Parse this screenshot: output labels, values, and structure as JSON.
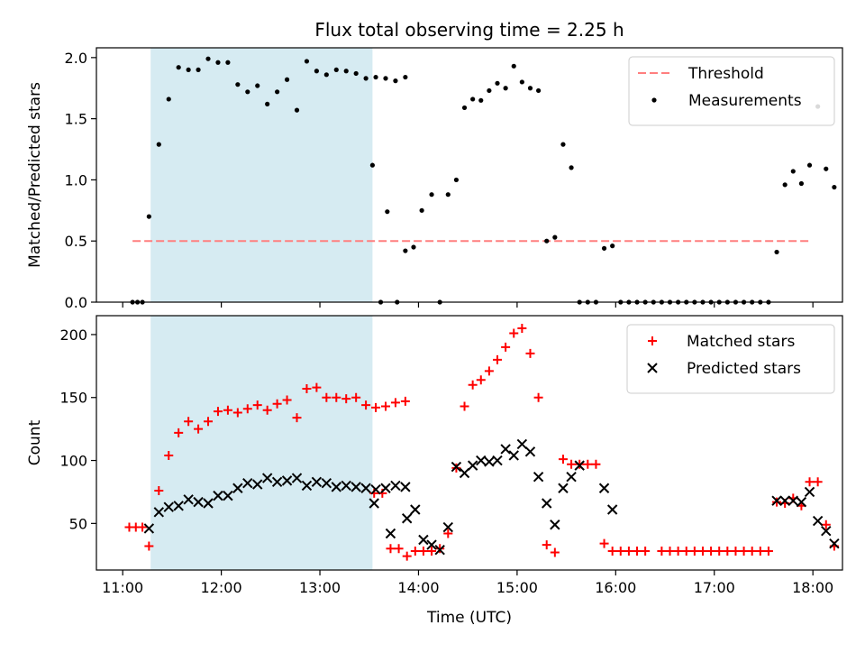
{
  "chart_data": [
    {
      "type": "scatter",
      "title": "Flux total observing time = 2.25 h",
      "ylabel": "Matched/Predicted stars",
      "xlabel": "",
      "ylim": [
        0,
        2.08
      ],
      "yticks": [
        "0.0",
        "0.5",
        "1.0",
        "1.5",
        "2.0"
      ],
      "xlim": [
        "10:44",
        "18:18"
      ],
      "grid": false,
      "legend_position": "top-right",
      "highlight_span": {
        "start": "11:17",
        "end": "13:32",
        "color": "#add8e6"
      },
      "threshold": {
        "name": "Threshold",
        "value": 0.5,
        "x_start": "11:06",
        "x_end": "17:58",
        "color": "#ff7f7f"
      },
      "series": [
        {
          "name": "Measurements",
          "color": "#000000",
          "points": [
            [
              "11:06",
              0
            ],
            [
              "11:09",
              0
            ],
            [
              "11:12",
              0
            ],
            [
              "11:16",
              0.7
            ],
            [
              "11:22",
              1.29
            ],
            [
              "11:28",
              1.66
            ],
            [
              "11:34",
              1.92
            ],
            [
              "11:40",
              1.9
            ],
            [
              "11:46",
              1.9
            ],
            [
              "11:52",
              1.99
            ],
            [
              "11:58",
              1.96
            ],
            [
              "12:04",
              1.96
            ],
            [
              "12:10",
              1.78
            ],
            [
              "12:16",
              1.72
            ],
            [
              "12:22",
              1.77
            ],
            [
              "12:28",
              1.62
            ],
            [
              "12:34",
              1.72
            ],
            [
              "12:40",
              1.82
            ],
            [
              "12:46",
              1.57
            ],
            [
              "12:52",
              1.97
            ],
            [
              "12:58",
              1.89
            ],
            [
              "13:04",
              1.86
            ],
            [
              "13:10",
              1.9
            ],
            [
              "13:16",
              1.89
            ],
            [
              "13:22",
              1.87
            ],
            [
              "13:28",
              1.83
            ],
            [
              "13:34",
              1.84
            ],
            [
              "13:40",
              1.83
            ],
            [
              "13:46",
              1.81
            ],
            [
              "13:52",
              1.84
            ],
            [
              "13:32",
              1.12
            ],
            [
              "13:37",
              0
            ],
            [
              "13:41",
              0.74
            ],
            [
              "13:47",
              0
            ],
            [
              "13:52",
              0.42
            ],
            [
              "13:57",
              0.45
            ],
            [
              "14:02",
              0.75
            ],
            [
              "14:08",
              0.88
            ],
            [
              "14:13",
              0
            ],
            [
              "14:18",
              0.88
            ],
            [
              "14:23",
              1.0
            ],
            [
              "14:28",
              1.59
            ],
            [
              "14:33",
              1.66
            ],
            [
              "14:38",
              1.65
            ],
            [
              "14:43",
              1.73
            ],
            [
              "14:48",
              1.79
            ],
            [
              "14:53",
              1.75
            ],
            [
              "14:58",
              1.93
            ],
            [
              "15:03",
              1.8
            ],
            [
              "15:08",
              1.75
            ],
            [
              "15:13",
              1.73
            ],
            [
              "15:18",
              0.5
            ],
            [
              "15:23",
              0.53
            ],
            [
              "15:28",
              1.29
            ],
            [
              "15:33",
              1.1
            ],
            [
              "15:38",
              0
            ],
            [
              "15:43",
              0
            ],
            [
              "15:48",
              0
            ],
            [
              "15:53",
              0.44
            ],
            [
              "15:58",
              0.46
            ],
            [
              "16:03",
              0
            ],
            [
              "16:08",
              0
            ],
            [
              "16:13",
              0
            ],
            [
              "16:18",
              0
            ],
            [
              "16:23",
              0
            ],
            [
              "16:28",
              0
            ],
            [
              "16:33",
              0
            ],
            [
              "16:38",
              0
            ],
            [
              "16:43",
              0
            ],
            [
              "16:48",
              0
            ],
            [
              "16:53",
              0
            ],
            [
              "16:58",
              0
            ],
            [
              "17:03",
              0
            ],
            [
              "17:08",
              0
            ],
            [
              "17:13",
              0
            ],
            [
              "17:18",
              0
            ],
            [
              "17:23",
              0
            ],
            [
              "17:28",
              0
            ],
            [
              "17:33",
              0
            ],
            [
              "17:38",
              0.41
            ],
            [
              "17:43",
              0.96
            ],
            [
              "17:48",
              1.07
            ],
            [
              "17:53",
              0.97
            ],
            [
              "17:58",
              1.12
            ],
            [
              "18:03",
              1.6
            ],
            [
              "18:08",
              1.09
            ],
            [
              "18:13",
              0.94
            ]
          ]
        }
      ]
    },
    {
      "type": "scatter",
      "title": "",
      "ylabel": "Count",
      "xlabel": "Time (UTC)",
      "ylim": [
        13,
        215
      ],
      "yticks": [
        "50",
        "100",
        "150",
        "200"
      ],
      "xlim": [
        "10:44",
        "18:18"
      ],
      "xticks": [
        "11:00",
        "12:00",
        "13:00",
        "14:00",
        "15:00",
        "16:00",
        "17:00",
        "18:00"
      ],
      "grid": false,
      "legend_position": "top-right",
      "highlight_span": {
        "start": "11:17",
        "end": "13:32",
        "color": "#add8e6"
      },
      "series": [
        {
          "name": "Matched stars",
          "marker": "plus",
          "color": "#ff0000",
          "points": [
            [
              "11:04",
              47
            ],
            [
              "11:08",
              47
            ],
            [
              "11:12",
              47
            ],
            [
              "11:16",
              32
            ],
            [
              "11:22",
              76
            ],
            [
              "11:28",
              104
            ],
            [
              "11:34",
              122
            ],
            [
              "11:40",
              131
            ],
            [
              "11:46",
              125
            ],
            [
              "11:52",
              131
            ],
            [
              "11:58",
              139
            ],
            [
              "12:04",
              140
            ],
            [
              "12:10",
              138
            ],
            [
              "12:16",
              141
            ],
            [
              "12:22",
              144
            ],
            [
              "12:28",
              140
            ],
            [
              "12:34",
              145
            ],
            [
              "12:40",
              148
            ],
            [
              "12:46",
              134
            ],
            [
              "12:52",
              157
            ],
            [
              "12:58",
              158
            ],
            [
              "13:04",
              150
            ],
            [
              "13:10",
              150
            ],
            [
              "13:16",
              149
            ],
            [
              "13:22",
              150
            ],
            [
              "13:28",
              144
            ],
            [
              "13:34",
              142
            ],
            [
              "13:40",
              143
            ],
            [
              "13:46",
              146
            ],
            [
              "13:52",
              147
            ],
            [
              "13:33",
              74
            ],
            [
              "13:38",
              74
            ],
            [
              "13:43",
              30
            ],
            [
              "13:48",
              30
            ],
            [
              "13:53",
              24
            ],
            [
              "13:58",
              28
            ],
            [
              "14:03",
              28
            ],
            [
              "14:08",
              28
            ],
            [
              "14:13",
              30
            ],
            [
              "14:18",
              42
            ],
            [
              "14:23",
              94
            ],
            [
              "14:28",
              143
            ],
            [
              "14:33",
              160
            ],
            [
              "14:38",
              164
            ],
            [
              "14:43",
              171
            ],
            [
              "14:48",
              180
            ],
            [
              "14:53",
              190
            ],
            [
              "14:58",
              201
            ],
            [
              "15:03",
              205
            ],
            [
              "15:08",
              185
            ],
            [
              "15:13",
              150
            ],
            [
              "15:18",
              33
            ],
            [
              "15:23",
              27
            ],
            [
              "15:28",
              101
            ],
            [
              "15:33",
              97
            ],
            [
              "15:38",
              97
            ],
            [
              "15:43",
              97
            ],
            [
              "15:48",
              97
            ],
            [
              "15:53",
              34
            ],
            [
              "15:58",
              28
            ],
            [
              "16:03",
              28
            ],
            [
              "16:08",
              28
            ],
            [
              "16:13",
              28
            ],
            [
              "16:18",
              28
            ],
            [
              "16:28",
              28
            ],
            [
              "16:33",
              28
            ],
            [
              "16:38",
              28
            ],
            [
              "16:43",
              28
            ],
            [
              "16:48",
              28
            ],
            [
              "16:53",
              28
            ],
            [
              "16:58",
              28
            ],
            [
              "17:03",
              28
            ],
            [
              "17:08",
              28
            ],
            [
              "17:13",
              28
            ],
            [
              "17:18",
              28
            ],
            [
              "17:23",
              28
            ],
            [
              "17:28",
              28
            ],
            [
              "17:33",
              28
            ],
            [
              "17:38",
              67
            ],
            [
              "17:43",
              66
            ],
            [
              "17:48",
              70
            ],
            [
              "17:53",
              64
            ],
            [
              "17:58",
              83
            ],
            [
              "18:03",
              83
            ],
            [
              "18:08",
              49
            ],
            [
              "18:13",
              32
            ]
          ]
        },
        {
          "name": "Predicted stars",
          "marker": "x",
          "color": "#000000",
          "points": [
            [
              "11:16",
              46
            ],
            [
              "11:22",
              59
            ],
            [
              "11:28",
              63
            ],
            [
              "11:34",
              64
            ],
            [
              "11:40",
              69
            ],
            [
              "11:46",
              67
            ],
            [
              "11:52",
              66
            ],
            [
              "11:58",
              72
            ],
            [
              "12:04",
              72
            ],
            [
              "12:10",
              78
            ],
            [
              "12:16",
              82
            ],
            [
              "12:22",
              81
            ],
            [
              "12:28",
              86
            ],
            [
              "12:34",
              83
            ],
            [
              "12:40",
              84
            ],
            [
              "12:46",
              86
            ],
            [
              "12:52",
              80
            ],
            [
              "12:58",
              83
            ],
            [
              "13:04",
              82
            ],
            [
              "13:10",
              79
            ],
            [
              "13:16",
              80
            ],
            [
              "13:22",
              79
            ],
            [
              "13:28",
              78
            ],
            [
              "13:34",
              77
            ],
            [
              "13:40",
              78
            ],
            [
              "13:46",
              80
            ],
            [
              "13:52",
              79
            ],
            [
              "13:33",
              66
            ],
            [
              "13:43",
              42
            ],
            [
              "13:53",
              54
            ],
            [
              "13:58",
              61
            ],
            [
              "14:03",
              37
            ],
            [
              "14:08",
              33
            ],
            [
              "14:13",
              29
            ],
            [
              "14:18",
              47
            ],
            [
              "14:23",
              95
            ],
            [
              "14:28",
              90
            ],
            [
              "14:33",
              96
            ],
            [
              "14:38",
              100
            ],
            [
              "14:43",
              99
            ],
            [
              "14:48",
              100
            ],
            [
              "14:53",
              109
            ],
            [
              "14:58",
              104
            ],
            [
              "15:03",
              113
            ],
            [
              "15:08",
              107
            ],
            [
              "15:13",
              87
            ],
            [
              "15:18",
              66
            ],
            [
              "15:23",
              49
            ],
            [
              "15:28",
              78
            ],
            [
              "15:33",
              87
            ],
            [
              "15:38",
              96
            ],
            [
              "15:53",
              78
            ],
            [
              "15:58",
              61
            ],
            [
              "17:38",
              68
            ],
            [
              "17:43",
              68
            ],
            [
              "17:48",
              68
            ],
            [
              "17:53",
              67
            ],
            [
              "17:58",
              75
            ],
            [
              "18:03",
              52
            ],
            [
              "18:08",
              44
            ],
            [
              "18:13",
              34
            ]
          ]
        }
      ]
    }
  ]
}
